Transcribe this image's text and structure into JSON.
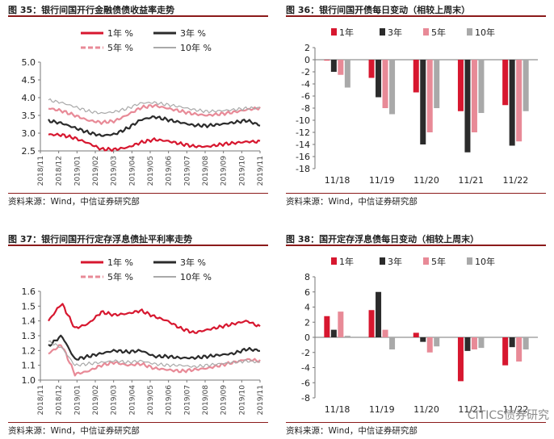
{
  "source_text": "资料来源：Wind，中信证券研究部",
  "watermark": "CITICS债券研究",
  "colors": {
    "s1": "#d7172f",
    "s3": "#2b2b2b",
    "s5": "#e88a97",
    "s10": "#a9a9a9",
    "rule": "#8b1a1a"
  },
  "chart_data": [
    {
      "id": "fig35",
      "title": "图 35：银行间国开行金融债债收益率走势",
      "type": "line",
      "legend": [
        "1年 %",
        "3年 %",
        "5年 %",
        "10年 %"
      ],
      "x_ticks": [
        "2018/11",
        "2018/12",
        "2019/01",
        "2019/02",
        "2019/03",
        "2019/04",
        "2019/05",
        "2019/06",
        "2019/07",
        "2019/08",
        "2019/09",
        "2019/10",
        "2019/11"
      ],
      "ylim": [
        2.5,
        5.0
      ],
      "yticks": [
        "2.5",
        "3.0",
        "3.5",
        "4.0",
        "4.5",
        "5.0"
      ],
      "series": [
        {
          "name": "1年 %",
          "values": [
            2.96,
            2.95,
            2.86,
            2.72,
            2.55,
            2.54,
            2.6,
            2.74,
            2.82,
            2.78,
            2.7,
            2.63,
            2.62,
            2.68,
            2.72,
            2.76,
            2.76
          ]
        },
        {
          "name": "3年 %",
          "values": [
            3.35,
            3.28,
            3.15,
            3.02,
            2.93,
            2.97,
            3.14,
            3.38,
            3.46,
            3.38,
            3.3,
            3.22,
            3.21,
            3.25,
            3.3,
            3.36,
            3.22
          ]
        },
        {
          "name": "5年 %",
          "values": [
            3.7,
            3.63,
            3.5,
            3.36,
            3.3,
            3.34,
            3.52,
            3.72,
            3.78,
            3.7,
            3.62,
            3.54,
            3.5,
            3.54,
            3.59,
            3.66,
            3.71
          ]
        },
        {
          "name": "10年 %",
          "values": [
            3.93,
            3.86,
            3.74,
            3.62,
            3.56,
            3.6,
            3.7,
            3.85,
            3.86,
            3.8,
            3.74,
            3.66,
            3.61,
            3.63,
            3.66,
            3.7,
            3.71
          ]
        }
      ]
    },
    {
      "id": "fig36",
      "title": "图 36：银行间国开债每日变动（相较上周末）",
      "type": "bar",
      "legend": [
        "1年",
        "3年",
        "5年",
        "10年"
      ],
      "categories": [
        "11/18",
        "11/19",
        "11/20",
        "11/21",
        "11/22"
      ],
      "ylim": [
        -18,
        2
      ],
      "yticks": [
        "2",
        "0",
        "-2",
        "-4",
        "-6",
        "-8",
        "-10",
        "-12",
        "-14",
        "-16",
        "-18"
      ],
      "series": [
        {
          "name": "1年",
          "values": [
            -0.1,
            -3.0,
            -5.4,
            -8.5,
            -7.5
          ]
        },
        {
          "name": "3年",
          "values": [
            -2.0,
            -6.2,
            -14.0,
            -15.3,
            -14.2
          ]
        },
        {
          "name": "5年",
          "values": [
            -2.5,
            -8.0,
            -12.0,
            -12.0,
            -13.5
          ]
        },
        {
          "name": "10年",
          "values": [
            -4.6,
            -9.0,
            -8.0,
            -8.8,
            -8.5
          ]
        }
      ]
    },
    {
      "id": "fig37",
      "title": "图 37：银行间国开行定存浮息债扯平利率走势",
      "type": "line",
      "legend": [
        "1年 %",
        "3年 %",
        "5年 %",
        "10年 %"
      ],
      "x_ticks": [
        "2018/11",
        "2018/12",
        "2019/01",
        "2019/02",
        "2019/03",
        "2019/04",
        "2019/05",
        "2019/06",
        "2019/07",
        "2019/08",
        "2019/09",
        "2019/10",
        "2019/11"
      ],
      "ylim": [
        1.0,
        1.6
      ],
      "yticks": [
        "1.0",
        "1.1",
        "1.2",
        "1.3",
        "1.4",
        "1.5",
        "1.6"
      ],
      "series": [
        {
          "name": "1年 %",
          "values": [
            1.4,
            1.52,
            1.35,
            1.38,
            1.46,
            1.44,
            1.45,
            1.47,
            1.43,
            1.4,
            1.35,
            1.32,
            1.34,
            1.36,
            1.38,
            1.4,
            1.36
          ]
        },
        {
          "name": "3年 %",
          "values": [
            1.23,
            1.3,
            1.14,
            1.16,
            1.18,
            1.2,
            1.19,
            1.2,
            1.16,
            1.16,
            1.15,
            1.15,
            1.16,
            1.17,
            1.18,
            1.21,
            1.2
          ]
        },
        {
          "name": "5年 %",
          "values": [
            1.18,
            1.24,
            1.04,
            1.06,
            1.1,
            1.12,
            1.1,
            1.11,
            1.08,
            1.07,
            1.06,
            1.07,
            1.08,
            1.1,
            1.12,
            1.14,
            1.13
          ]
        },
        {
          "name": "10年 %",
          "values": [
            1.26,
            1.22,
            1.1,
            1.11,
            1.12,
            1.13,
            1.12,
            1.13,
            1.11,
            1.1,
            1.1,
            1.09,
            1.1,
            1.11,
            1.12,
            1.13,
            1.12
          ]
        }
      ]
    },
    {
      "id": "fig38",
      "title": "图 38：国开定存浮息债每日变动（相较上周末）",
      "type": "bar",
      "legend": [
        "1年",
        "3年",
        "5年",
        "10年"
      ],
      "categories": [
        "11/18",
        "11/19",
        "11/20",
        "11/21",
        "11/22"
      ],
      "ylim": [
        -8,
        8
      ],
      "yticks": [
        "8",
        "6",
        "4",
        "2",
        "0",
        "-2",
        "-4",
        "-6",
        "-8"
      ],
      "series": [
        {
          "name": "1年",
          "values": [
            2.8,
            3.6,
            0.6,
            -5.8,
            -3.7
          ]
        },
        {
          "name": "3年",
          "values": [
            1.0,
            6.0,
            -0.6,
            -1.8,
            -1.3
          ]
        },
        {
          "name": "5年",
          "values": [
            3.4,
            1.0,
            -2.0,
            -1.6,
            -3.2
          ]
        },
        {
          "name": "10年",
          "values": [
            0.2,
            -1.6,
            -1.2,
            -1.4,
            -1.6
          ]
        }
      ]
    }
  ]
}
